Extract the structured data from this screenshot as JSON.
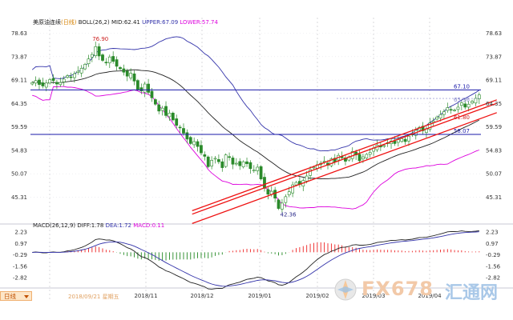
{
  "header": {
    "instrument": "美原油连续",
    "period_tag": "(日线)",
    "indicator": "BOLL(26,2)",
    "mid": "MID:62.41",
    "upper": "UPPER:67.09",
    "lower": "LOWER:57.74"
  },
  "macd_header": {
    "name": "MACD(26,12,9)",
    "diff": "DIFF:1.78",
    "dea": "DEA:1.72",
    "macd": "MACD:0.11"
  },
  "footer": {
    "timeframe_button": "日线",
    "cursor_date": "2018/09/21  星期五"
  },
  "watermark": {
    "brand": "FX678",
    "cn": "汇通网"
  },
  "colors": {
    "candle": "#2a8a2a",
    "upper_band": "#3333aa",
    "mid_band": "#222222",
    "lower_band": "#dd00dd",
    "channel": "#ee1111",
    "horizontal": "#1a1aaa",
    "macd_pos": "#ee2222",
    "macd_neg": "#228822",
    "price_label": "#cc2222"
  },
  "chart_data": [
    {
      "type": "candlestick",
      "title": "美原油连续(日线)",
      "ylim": [
        40.5,
        80.5
      ],
      "y_tick_labels": [
        "78.63",
        "73.87",
        "69.11",
        "64.35",
        "59.59",
        "54.83",
        "50.07",
        "45.31"
      ],
      "y_ticks": [
        78.63,
        73.87,
        69.11,
        64.35,
        59.59,
        54.83,
        50.07,
        45.31
      ],
      "x_tick_labels": [
        "2018/11",
        "2018/12",
        "2019/01",
        "2019/02",
        "2019/03",
        "2019/04"
      ],
      "series_closes": [
        68.6,
        69.0,
        68.2,
        67.9,
        68.5,
        69.2,
        69.0,
        68.3,
        68.6,
        69.3,
        70.0,
        69.6,
        70.4,
        70.9,
        71.5,
        72.3,
        73.4,
        74.3,
        75.9,
        74.0,
        73.1,
        72.7,
        73.8,
        72.9,
        71.9,
        71.4,
        70.7,
        69.9,
        70.5,
        68.9,
        67.2,
        66.9,
        68.3,
        66.6,
        65.5,
        64.2,
        62.8,
        63.4,
        61.9,
        62.4,
        61.0,
        59.9,
        59.4,
        58.3,
        57.1,
        56.2,
        56.6,
        55.6,
        54.3,
        53.6,
        51.5,
        52.8,
        53.2,
        52.5,
        51.3,
        53.9,
        53.4,
        52.0,
        52.2,
        51.7,
        52.5,
        52.1,
        51.1,
        50.8,
        51.4,
        49.0,
        47.1,
        45.9,
        46.5,
        45.1,
        43.0,
        44.1,
        45.4,
        46.4,
        47.8,
        48.3,
        47.9,
        48.7,
        49.6,
        50.9,
        51.4,
        51.9,
        52.2,
        52.6,
        51.8,
        53.1,
        52.5,
        53.8,
        53.3,
        52.6,
        53.5,
        54.6,
        53.9,
        52.7,
        53.5,
        54.0,
        54.4,
        55.3,
        55.9,
        55.5,
        55.8,
        56.4,
        56.7,
        56.2,
        57.0,
        57.2,
        56.6,
        57.7,
        58.1,
        58.9,
        59.5,
        58.8,
        59.2,
        60.4,
        60.8,
        61.6,
        62.1,
        62.7,
        63.5,
        63.1,
        63.0,
        63.6,
        64.5,
        63.6,
        64.2,
        64.8,
        65.4,
        66.1
      ],
      "horizontal_lines": [
        {
          "value": 67.1,
          "label": "67.10"
        },
        {
          "value": 58.07,
          "label": "58.07"
        }
      ],
      "annotations": [
        {
          "text": "76.90",
          "value": 76.9
        },
        {
          "text": "42.36",
          "value": 42.36
        },
        {
          "text": "65.36",
          "value": 65.36
        },
        {
          "text": "61.80",
          "value": 61.8
        }
      ],
      "trend_channel": {
        "slope_per_bar": 0.262,
        "upper_start": 43.6,
        "lower_start": 42.9,
        "mid_start": 41.0
      }
    },
    {
      "type": "bar",
      "title": "MACD(26,12,9)",
      "ylim": [
        -3.6,
        2.6
      ],
      "y_tick_labels": [
        "2.23",
        "0.97",
        "-0.29",
        "-1.56",
        "-2.82"
      ],
      "y_ticks": [
        2.23,
        0.97,
        -0.29,
        -1.56,
        -2.82
      ],
      "series": [
        {
          "name": "DIFF",
          "value_last": 1.78
        },
        {
          "name": "DEA",
          "value_last": 1.72
        },
        {
          "name": "MACD",
          "value_last": 0.11
        }
      ]
    }
  ]
}
